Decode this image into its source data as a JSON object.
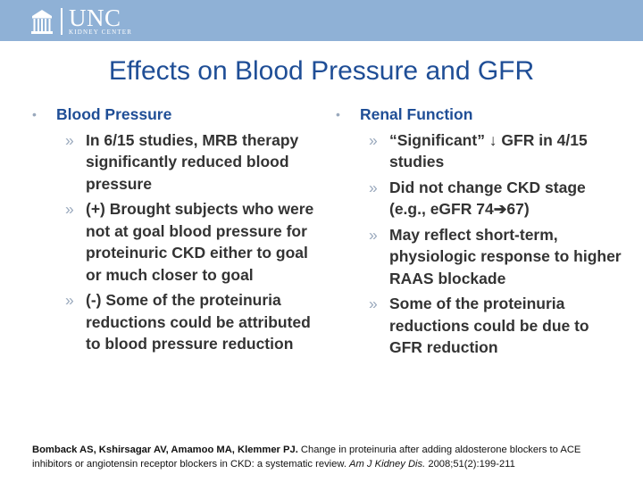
{
  "header": {
    "logo_name": "UNC",
    "logo_subtitle": "KIDNEY CENTER",
    "brand_color": "#8fb1d6"
  },
  "title": "Effects on Blood Pressure and GFR",
  "left_column": {
    "heading": "Blood Pressure",
    "items": [
      "In 6/15 studies, MRB therapy significantly reduced blood pressure",
      "(+) Brought subjects who were not at goal blood pressure for proteinuric CKD either to goal or much closer to goal",
      "(-) Some of the proteinuria reductions could be attributed to blood pressure reduction"
    ]
  },
  "right_column": {
    "heading": "Renal Function",
    "items": [
      "“Significant” ↓ GFR in 4/15 studies",
      "Did not change CKD stage (e.g., eGFR 74➔67)",
      "May reflect short-term, physiologic response to higher RAAS blockade",
      "Some of the proteinuria reductions could be due to GFR reduction"
    ]
  },
  "citation": {
    "authors": "Bomback AS, Kshirsagar AV, Amamoo MA, Klemmer PJ.",
    "text": " Change in proteinuria after adding aldosterone blockers to ACE inhibitors or angiotensin receptor blockers in CKD: a systematic review. ",
    "journal": "Am J Kidney Dis.",
    "details": " 2008;51(2):199-211"
  },
  "markers": {
    "bullet": "•",
    "sub_bullet": "»"
  },
  "colors": {
    "title": "#1f4e96",
    "body": "#333333",
    "marker": "#9aa9bd"
  }
}
